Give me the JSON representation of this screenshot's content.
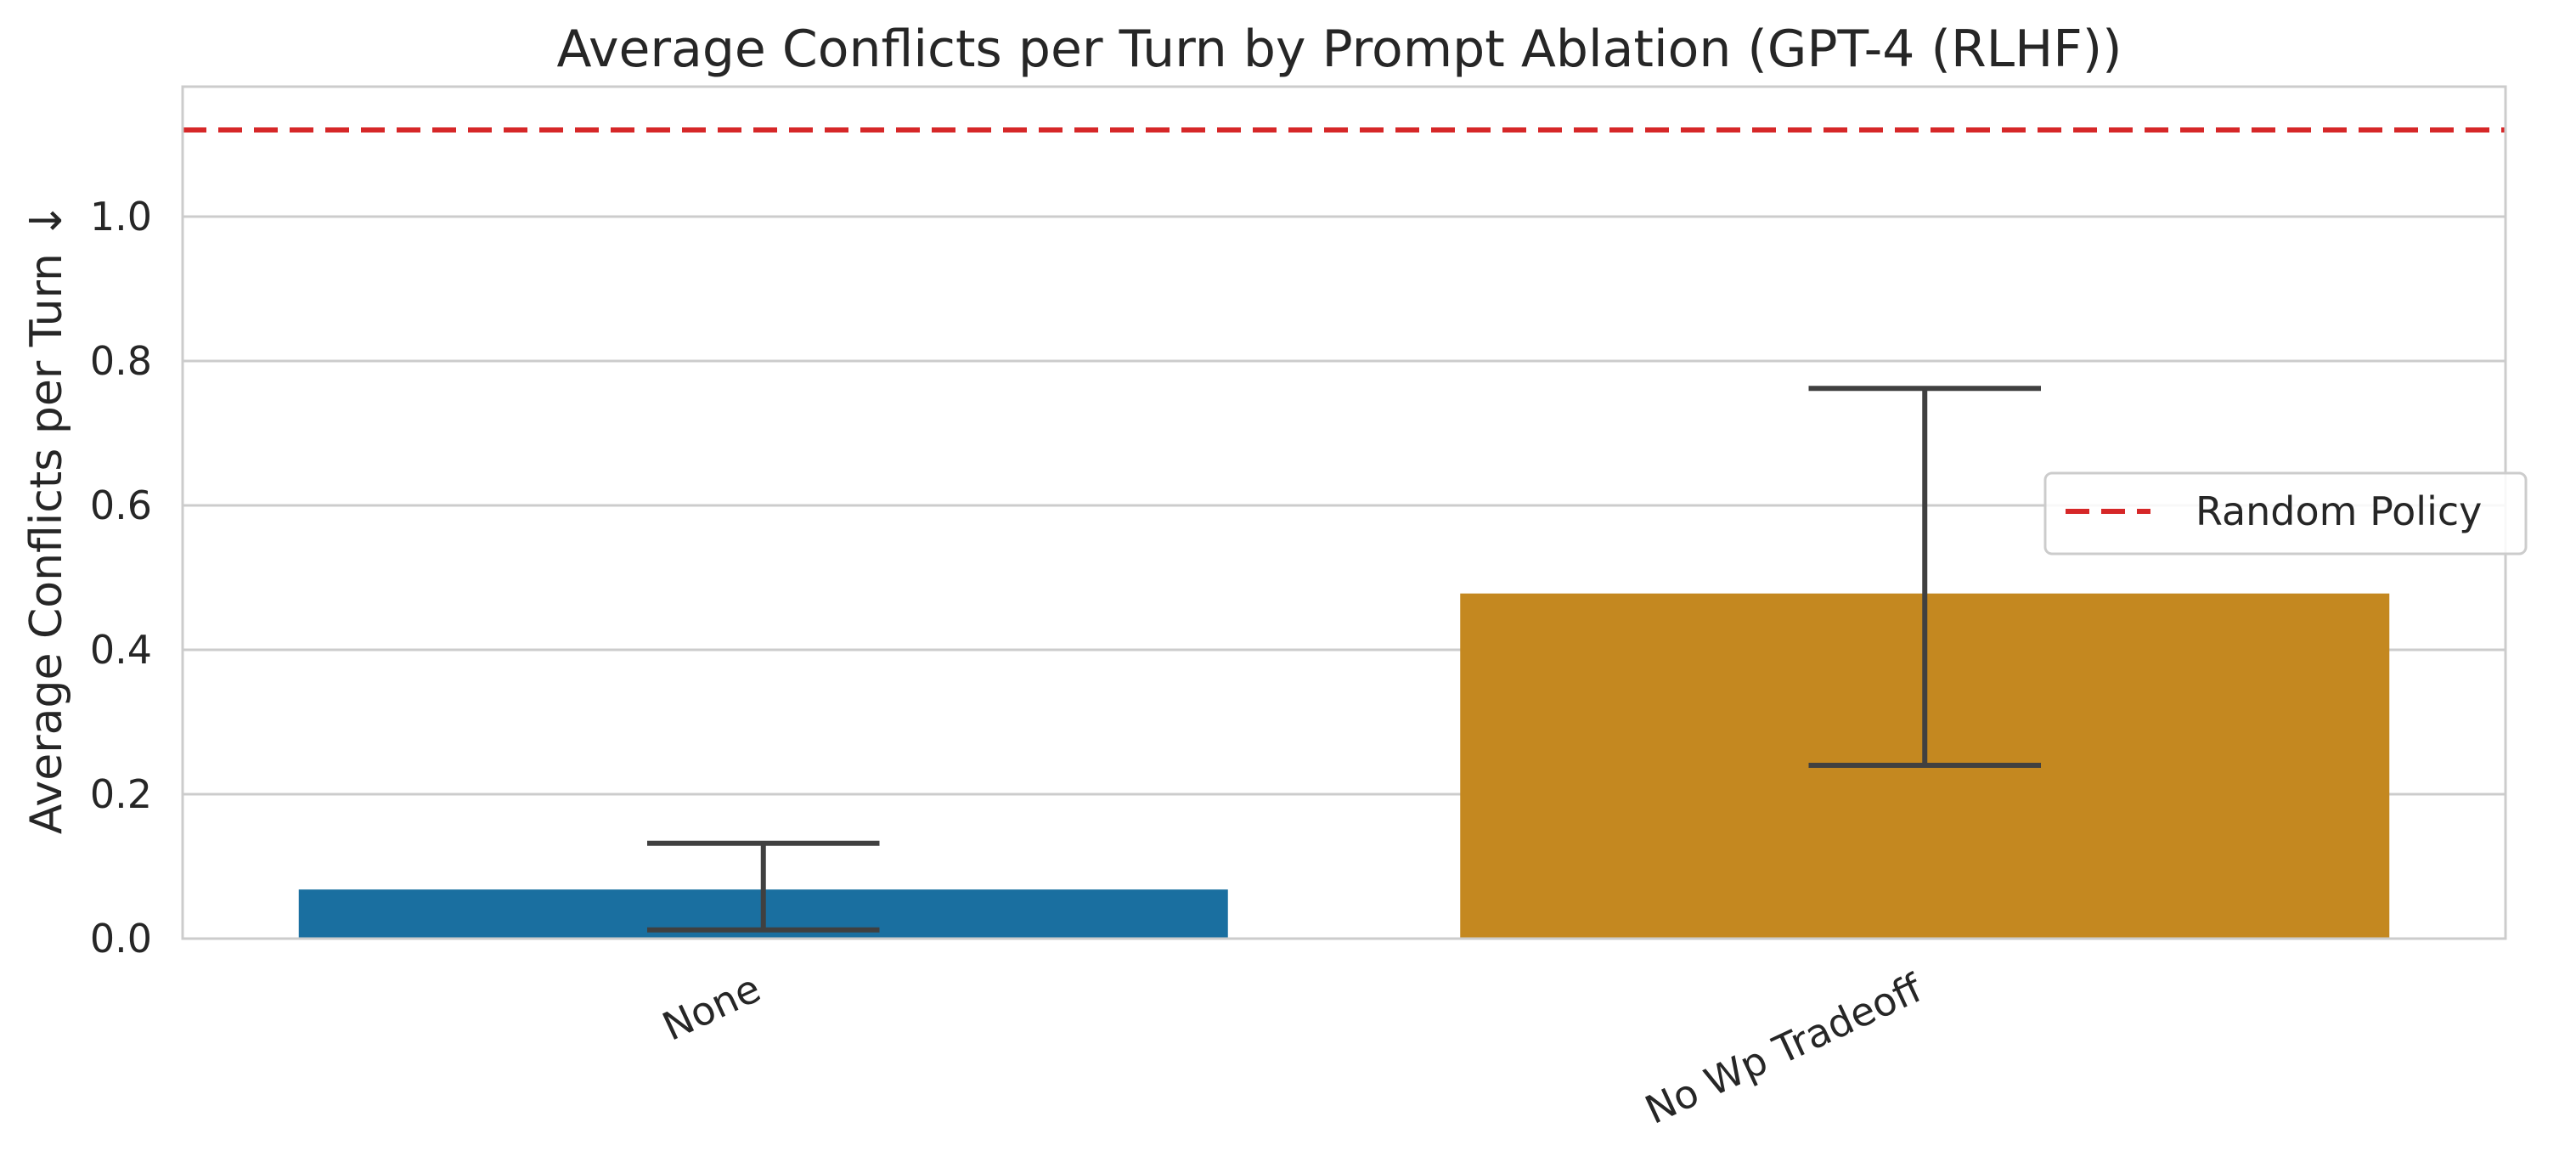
{
  "chart_data": {
    "type": "bar",
    "title": "Average Conflicts per Turn by Prompt Ablation (GPT-4 (RLHF))",
    "xlabel": "",
    "ylabel": "Average Conflicts per Turn ↓",
    "categories": [
      "None",
      "No Wp Tradeoff"
    ],
    "values": [
      0.068,
      0.478
    ],
    "error_low": [
      0.012,
      0.24
    ],
    "error_high": [
      0.132,
      0.762
    ],
    "colors": [
      "#1a6fa0",
      "#c48820"
    ],
    "ylim": [
      0,
      1.18
    ],
    "yticks": [
      0.0,
      0.2,
      0.4,
      0.6,
      0.8,
      1.0
    ],
    "ytick_labels": [
      "0.0",
      "0.2",
      "0.4",
      "0.6",
      "0.8",
      "1.0"
    ],
    "reference_line": {
      "label": "Random Policy",
      "value": 1.12,
      "color": "#d62728",
      "style": "dashed"
    },
    "grid": true,
    "legend_position": "center-right"
  }
}
